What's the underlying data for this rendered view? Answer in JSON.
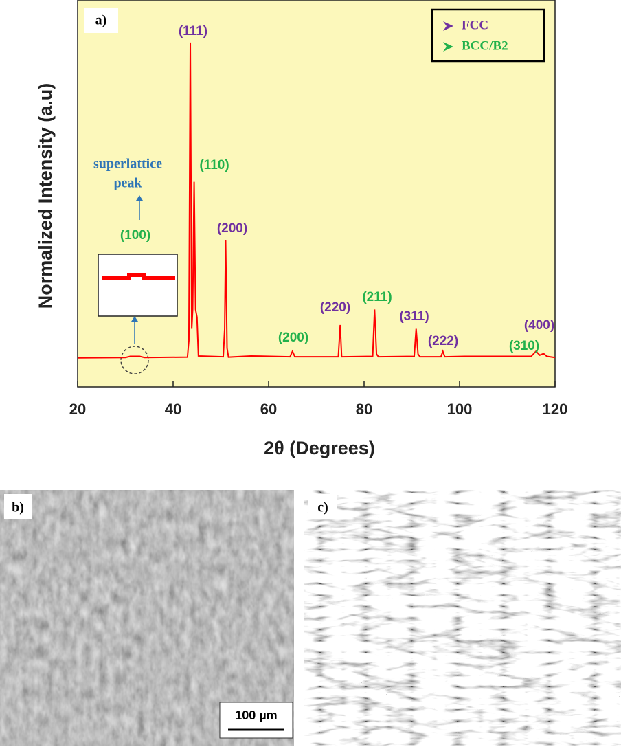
{
  "chart_data": {
    "type": "line",
    "panel_label": "a)",
    "xlabel": "2θ (Degrees)",
    "ylabel": "Normalized Intensity (a.u)",
    "color": "#ff0000",
    "x": [
      20,
      30,
      31,
      33,
      34,
      43,
      43.3,
      43.6,
      43.9,
      44.1,
      44.4,
      44.7,
      45.0,
      45.3,
      50.5,
      50.8,
      51.0,
      51.3,
      51.6,
      56.3,
      64.5,
      65.0,
      65.5,
      74.6,
      75.0,
      75.3,
      81.8,
      82.2,
      82.6,
      83,
      90.5,
      90.9,
      91.3,
      91.7,
      96.1,
      96.5,
      96.9,
      101,
      115,
      116,
      116.8,
      117.6,
      118.3,
      120
    ],
    "values": [
      7.5,
      7.6,
      7.9,
      7.9,
      7.6,
      7.7,
      12,
      89,
      15,
      20,
      53,
      20,
      18,
      8,
      7.8,
      15,
      38,
      10,
      7.7,
      8,
      7.8,
      9.2,
      7.8,
      7.8,
      16,
      7.8,
      7.9,
      20,
      8.5,
      7.8,
      7.9,
      15,
      8.5,
      7.8,
      7.8,
      9.2,
      7.8,
      7.9,
      7.9,
      9.2,
      8.2,
      8.6,
      7.9,
      7.6
    ],
    "xlim": [
      20,
      120
    ],
    "xticks": [
      20,
      40,
      60,
      80,
      100,
      120
    ],
    "ylim": [
      0,
      100
    ],
    "legend": [
      {
        "name": "FCC",
        "color": "#7030a0"
      },
      {
        "name": "BCC/B2",
        "color": "#22b14c"
      }
    ],
    "annotations": [
      {
        "text": "(111)",
        "phase": "FCC"
      },
      {
        "text": "(110)",
        "phase": "BCC/B2"
      },
      {
        "text": "(200)",
        "phase": "FCC"
      },
      {
        "text": "(200)",
        "phase": "BCC/B2"
      },
      {
        "text": "(220)",
        "phase": "FCC"
      },
      {
        "text": "(211)",
        "phase": "BCC/B2"
      },
      {
        "text": "(311)",
        "phase": "FCC"
      },
      {
        "text": "(222)",
        "phase": "FCC"
      },
      {
        "text": "(310)",
        "phase": "BCC/B2"
      },
      {
        "text": "(400)",
        "phase": "FCC"
      },
      {
        "text": "(100)",
        "phase": "BCC/B2"
      }
    ],
    "superlattice_label": [
      "superlattice",
      "peak"
    ]
  },
  "images": [
    {
      "panel_label": "b)",
      "scale_bar": "100 µm"
    },
    {
      "panel_label": "c)"
    }
  ]
}
